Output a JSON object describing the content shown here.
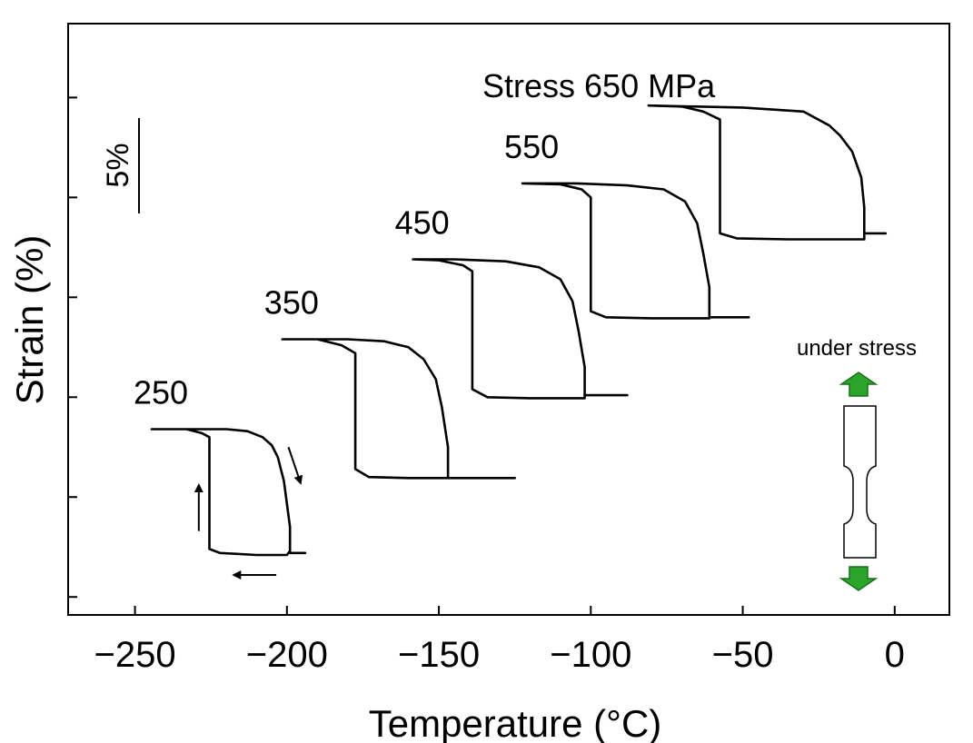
{
  "chart_data": {
    "type": "line",
    "xlabel": "Temperature (°C)",
    "ylabel": "Strain (%)",
    "xlim": [
      -272,
      18
    ],
    "x_ticks": [
      -250,
      -200,
      -150,
      -100,
      -50,
      0
    ],
    "x_tick_labels": [
      "−250",
      "−200",
      "−150",
      "−100",
      "−50",
      "0"
    ],
    "ylim": [
      -0.9,
      28.7
    ],
    "y_ticks": [
      0,
      5,
      10,
      15,
      20,
      25
    ],
    "y_scale_bar": {
      "label": "5%",
      "value": 5
    },
    "stress_title": "Stress 650 MPa",
    "legend": {
      "label": "under stress",
      "icon": "tensile-specimen-icon",
      "arrow_color": "#2aa52a"
    },
    "series": [
      {
        "name": "250",
        "points": [
          [
            -244.5,
            8.4
          ],
          [
            -233,
            8.4
          ],
          [
            -228,
            8.2
          ],
          [
            -225.5,
            8.0
          ],
          [
            -225.5,
            2.4
          ],
          [
            -222,
            2.2
          ],
          [
            -210,
            2.1
          ],
          [
            -200,
            2.1
          ],
          [
            -199,
            2.3
          ],
          [
            -199,
            3.5
          ],
          [
            -201,
            5.8
          ],
          [
            -203,
            7.0
          ],
          [
            -205,
            7.6
          ],
          [
            -208,
            8.0
          ],
          [
            -213,
            8.3
          ],
          [
            -220,
            8.4
          ],
          [
            -233,
            8.4
          ],
          [
            -244.5,
            8.4
          ]
        ],
        "tail": [
          [
            -199,
            2.2
          ],
          [
            -194,
            2.2
          ]
        ]
      },
      {
        "name": "350",
        "points": [
          [
            -201.5,
            12.9
          ],
          [
            -190,
            12.9
          ],
          [
            -182,
            12.6
          ],
          [
            -177.5,
            12.2
          ],
          [
            -177.5,
            6.4
          ],
          [
            -173,
            6.0
          ],
          [
            -160,
            5.95
          ],
          [
            -147,
            5.95
          ],
          [
            -147,
            7.5
          ],
          [
            -149,
            9.5
          ],
          [
            -151,
            10.9
          ],
          [
            -155,
            11.9
          ],
          [
            -160,
            12.5
          ],
          [
            -168,
            12.8
          ],
          [
            -180,
            12.9
          ],
          [
            -201.5,
            12.9
          ]
        ],
        "tail": [
          [
            -147,
            5.95
          ],
          [
            -125,
            5.95
          ]
        ]
      },
      {
        "name": "450",
        "points": [
          [
            -158.5,
            16.9
          ],
          [
            -150,
            16.85
          ],
          [
            -142,
            16.6
          ],
          [
            -139,
            16.3
          ],
          [
            -139,
            10.4
          ],
          [
            -134,
            10.0
          ],
          [
            -120,
            9.95
          ],
          [
            -102,
            9.95
          ],
          [
            -102,
            11.5
          ],
          [
            -104,
            13.3
          ],
          [
            -106,
            14.8
          ],
          [
            -110,
            15.9
          ],
          [
            -117,
            16.5
          ],
          [
            -128,
            16.8
          ],
          [
            -145,
            16.9
          ],
          [
            -158.5,
            16.9
          ]
        ],
        "tail": [
          [
            -102,
            10.1
          ],
          [
            -88,
            10.1
          ]
        ]
      },
      {
        "name": "550",
        "points": [
          [
            -122.5,
            20.7
          ],
          [
            -110,
            20.65
          ],
          [
            -103,
            20.4
          ],
          [
            -100,
            20.0
          ],
          [
            -100,
            14.3
          ],
          [
            -95,
            14.0
          ],
          [
            -80,
            13.95
          ],
          [
            -61,
            13.95
          ],
          [
            -61,
            15.5
          ],
          [
            -63,
            17.2
          ],
          [
            -65,
            18.7
          ],
          [
            -69,
            19.8
          ],
          [
            -76,
            20.4
          ],
          [
            -88,
            20.6
          ],
          [
            -105,
            20.7
          ],
          [
            -122.5,
            20.7
          ]
        ],
        "tail": [
          [
            -61,
            14.0
          ],
          [
            -48,
            14.0
          ]
        ]
      },
      {
        "name": "650",
        "points": [
          [
            -81,
            24.6
          ],
          [
            -70,
            24.55
          ],
          [
            -63,
            24.3
          ],
          [
            -57.5,
            23.9
          ],
          [
            -57.5,
            18.2
          ],
          [
            -52,
            17.95
          ],
          [
            -35,
            17.9
          ],
          [
            -10,
            17.9
          ],
          [
            -10,
            19.5
          ],
          [
            -11,
            21.0
          ],
          [
            -14,
            22.3
          ],
          [
            -18,
            23.1
          ],
          [
            -21.5,
            23.6
          ],
          [
            -30,
            24.3
          ],
          [
            -50,
            24.5
          ],
          [
            -81,
            24.6
          ]
        ],
        "tail": [
          [
            -10,
            18.2
          ],
          [
            -3,
            18.2
          ]
        ]
      }
    ],
    "arrows": [
      {
        "name": "heating-arrow-up",
        "from": [
          -229,
          3.3
        ],
        "to": [
          -229,
          5.6
        ]
      },
      {
        "name": "cooling-arrow-down",
        "from": [
          -199.5,
          7.5
        ],
        "to": [
          -195.5,
          5.7
        ]
      },
      {
        "name": "cooling-arrow-left",
        "from": [
          -203.5,
          1.1
        ],
        "to": [
          -217.5,
          1.1
        ]
      }
    ]
  }
}
